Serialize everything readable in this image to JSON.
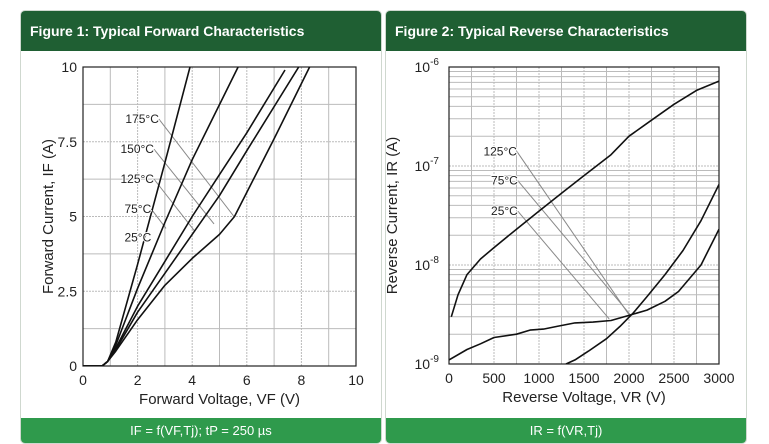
{
  "colors": {
    "header": "#1f5f33",
    "footer": "#2f9a4c",
    "curve": "#111111",
    "leader": "#888888",
    "grid": "#bbbbbb"
  },
  "chart_data": [
    {
      "type": "line",
      "title": "Figure 1: Typical Forward Characteristics",
      "caption": "Iₐ = f(Vₐ,Tⱼ); tₚ = 250 µs",
      "caption_text": "IF = f(VF,Tj); tP = 250 µs",
      "xlabel": "Forward Voltage, VF (V)",
      "ylabel": "Forward Current, IF (A)",
      "xlim": [
        0,
        10
      ],
      "ylim": [
        0,
        10
      ],
      "xticks": [
        "0",
        "2",
        "4",
        "6",
        "8",
        "10"
      ],
      "yticks": [
        "0",
        "2.5",
        "5",
        "7.5",
        "10"
      ],
      "grid": true,
      "series": [
        {
          "name": "25°C",
          "points": [
            [
              0,
              0
            ],
            [
              0.7,
              0
            ],
            [
              0.9,
              0.15
            ],
            [
              1.2,
              0.8
            ],
            [
              2,
              3.4
            ],
            [
              3,
              6.8
            ],
            [
              3.92,
              10
            ]
          ]
        },
        {
          "name": "75°C",
          "points": [
            [
              0,
              0
            ],
            [
              0.7,
              0
            ],
            [
              0.9,
              0.15
            ],
            [
              1.2,
              0.7
            ],
            [
              2,
              2.6
            ],
            [
              3,
              4.8
            ],
            [
              4,
              6.9
            ],
            [
              5.68,
              10
            ]
          ]
        },
        {
          "name": "125°C",
          "points": [
            [
              0,
              0
            ],
            [
              0.7,
              0
            ],
            [
              0.9,
              0.15
            ],
            [
              1.2,
              0.6
            ],
            [
              2,
              2.0
            ],
            [
              3,
              3.5
            ],
            [
              4,
              5.0
            ],
            [
              5,
              6.4
            ],
            [
              6,
              7.8
            ],
            [
              7.4,
              9.9
            ]
          ]
        },
        {
          "name": "150°C",
          "points": [
            [
              0,
              0
            ],
            [
              0.7,
              0
            ],
            [
              0.9,
              0.15
            ],
            [
              1.2,
              0.55
            ],
            [
              2,
              1.8
            ],
            [
              3,
              3.1
            ],
            [
              4,
              4.4
            ],
            [
              5,
              5.7
            ],
            [
              6,
              7.2
            ],
            [
              7.9,
              10
            ]
          ]
        },
        {
          "name": "175°C",
          "points": [
            [
              0,
              0
            ],
            [
              0.7,
              0
            ],
            [
              0.9,
              0.15
            ],
            [
              1.2,
              0.5
            ],
            [
              2,
              1.55
            ],
            [
              3,
              2.7
            ],
            [
              4,
              3.6
            ],
            [
              5,
              4.4
            ],
            [
              5.55,
              5
            ],
            [
              7,
              7.6
            ],
            [
              8.3,
              10
            ]
          ]
        }
      ],
      "annotations": [
        {
          "text": "175°C",
          "at": [
            2.78,
            8.26
          ],
          "to": [
            5.53,
            5.0
          ]
        },
        {
          "text": "150°C",
          "at": [
            2.6,
            7.25
          ],
          "to": [
            4.8,
            4.75
          ]
        },
        {
          "text": "125°C",
          "at": [
            2.6,
            6.25
          ],
          "to": [
            4.1,
            4.5
          ]
        },
        {
          "text": "75°C",
          "at": [
            2.5,
            5.25
          ],
          "to": [
            3.04,
            4.6
          ]
        },
        {
          "text": "25°C",
          "at": [
            2.5,
            4.3
          ],
          "to": [
            2.5,
            4.3
          ]
        }
      ]
    },
    {
      "type": "line",
      "title": "Figure 2: Typical Reverse Characteristics",
      "caption_text": "IR = f(VR,Tj)",
      "xlabel": "Reverse Voltage, VR (V)",
      "ylabel": "Reverse Current, IR (A)",
      "xlim": [
        0,
        3000
      ],
      "ylim": [
        1e-09,
        1e-06
      ],
      "yscale": "log",
      "xticks": [
        "0",
        "500",
        "1000",
        "1500",
        "2000",
        "2500",
        "3000"
      ],
      "yticks": [
        "10^-9",
        "10^-8",
        "10^-7",
        "10^-6"
      ],
      "grid": true,
      "series": [
        {
          "name": "125°C",
          "points": [
            [
              25,
              3e-09
            ],
            [
              100,
              5e-09
            ],
            [
              200,
              8e-09
            ],
            [
              350,
              1.15e-08
            ],
            [
              500,
              1.5e-08
            ],
            [
              750,
              2.3e-08
            ],
            [
              1000,
              3.5e-08
            ],
            [
              1250,
              5.3e-08
            ],
            [
              1500,
              8e-08
            ],
            [
              1800,
              1.3e-07
            ],
            [
              2000,
              2e-07
            ],
            [
              2250,
              2.9e-07
            ],
            [
              2500,
              4.2e-07
            ],
            [
              2750,
              5.8e-07
            ],
            [
              3000,
              7.2e-07
            ]
          ]
        },
        {
          "name": "75°C",
          "points": [
            [
              0,
              1.1e-09
            ],
            [
              200,
              1.4e-09
            ],
            [
              350,
              1.6e-09
            ],
            [
              500,
              1.85e-09
            ],
            [
              750,
              2e-09
            ],
            [
              900,
              2.2e-09
            ],
            [
              1050,
              2.25e-09
            ],
            [
              1200,
              2.4e-09
            ],
            [
              1400,
              2.6e-09
            ],
            [
              1600,
              2.65e-09
            ],
            [
              1800,
              2.75e-09
            ],
            [
              2000,
              3.1e-09
            ],
            [
              2200,
              3.5e-09
            ],
            [
              2400,
              4.3e-09
            ],
            [
              2550,
              5.4e-09
            ],
            [
              2800,
              1e-08
            ],
            [
              3000,
              2.3e-08
            ]
          ]
        },
        {
          "name": "25°C",
          "points": [
            [
              1300,
              1e-09
            ],
            [
              1400,
              1.1e-09
            ],
            [
              1550,
              1.35e-09
            ],
            [
              1750,
              1.8e-09
            ],
            [
              1900,
              2.4e-09
            ],
            [
              2050,
              3.3e-09
            ],
            [
              2200,
              4.8e-09
            ],
            [
              2400,
              8e-09
            ],
            [
              2600,
              1.4e-08
            ],
            [
              2800,
              2.8e-08
            ],
            [
              3000,
              6.5e-08
            ]
          ]
        }
      ],
      "annotations": [
        {
          "text": "125°C",
          "at": [
            755,
            1.4e-07
          ],
          "to": [
            2010,
            3.05e-09
          ]
        },
        {
          "text": "75°C",
          "at": [
            765,
            7.1e-08
          ],
          "to": [
            2020,
            3.1e-09
          ]
        },
        {
          "text": "25°C",
          "at": [
            765,
            3.5e-08
          ],
          "to": [
            1780,
            2.85e-09
          ]
        }
      ]
    }
  ]
}
